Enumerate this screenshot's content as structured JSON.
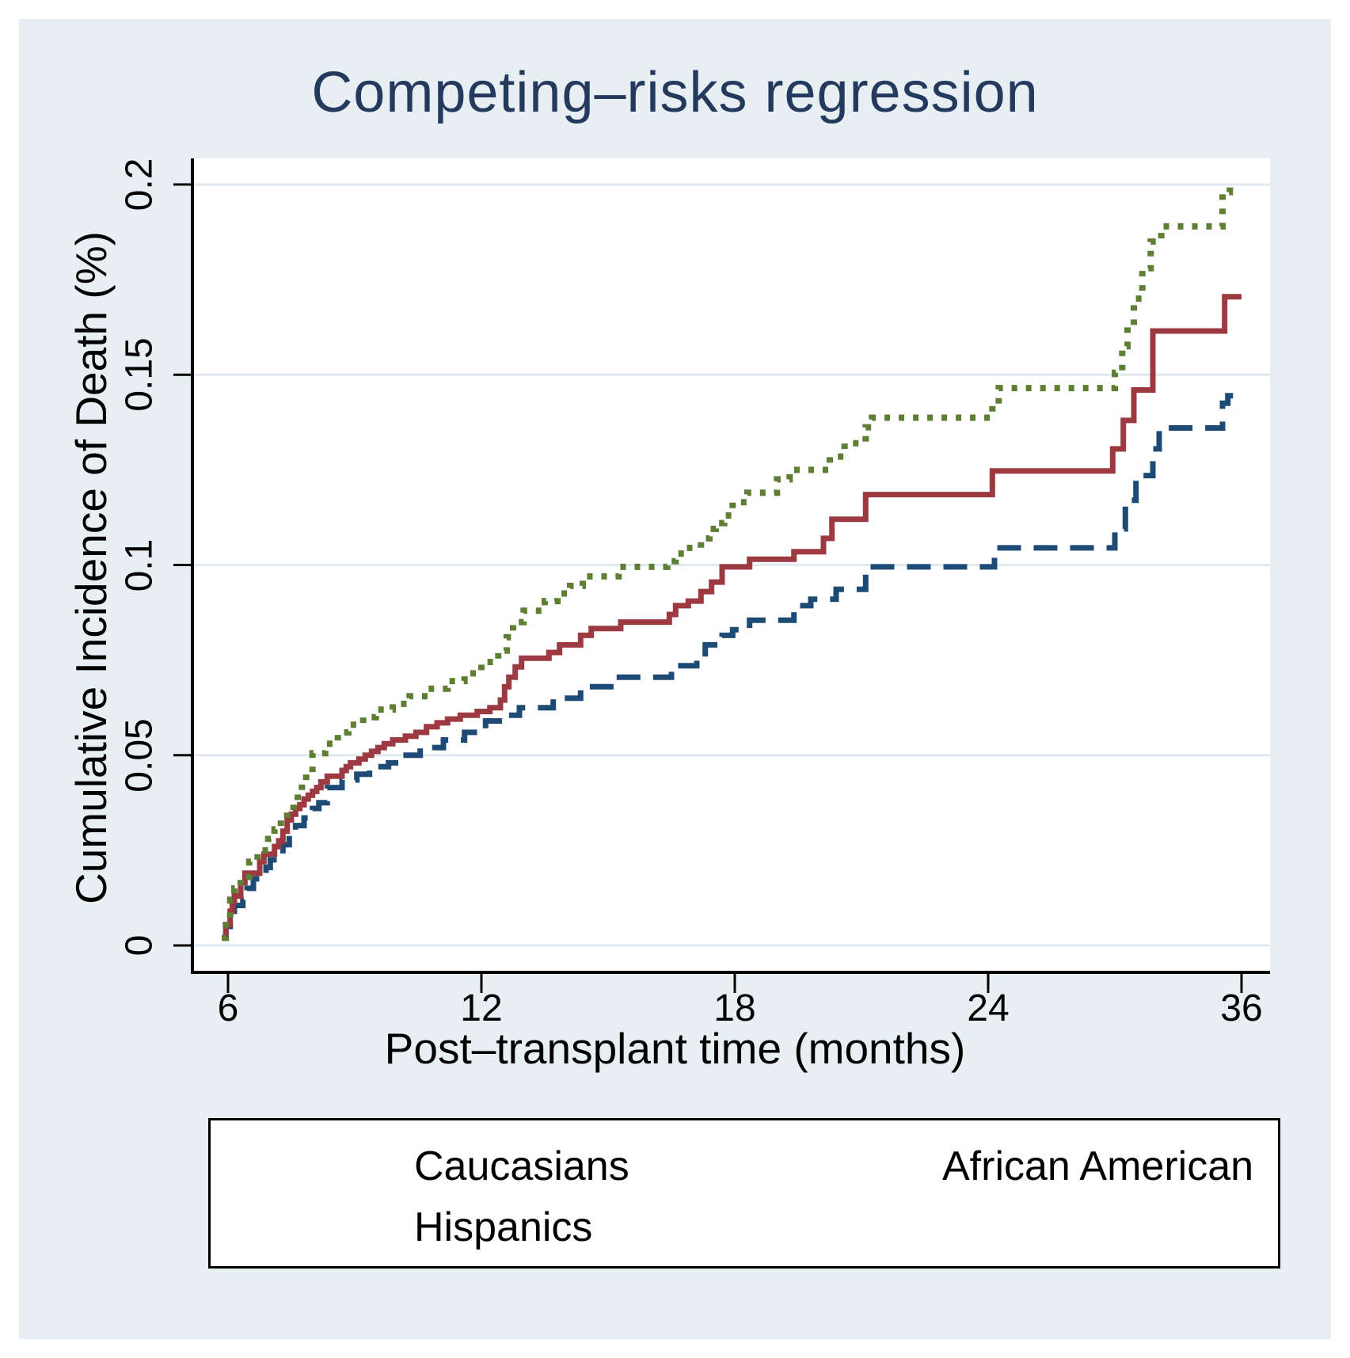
{
  "figure": {
    "title": "Competing–risks regression",
    "title_color": "#233a5e",
    "background_color": "#e8eff2",
    "plot_background_color": "#ffffff",
    "grid_color": "#dfeaf0",
    "axis_color": "#000000"
  },
  "chart_data": {
    "type": "line",
    "subtype": "step-cumulative-incidence",
    "title": "Competing–risks regression",
    "xlabel": "Post–transplant time (months)",
    "ylabel": "Cumulative Incidence of Death (%)",
    "grid": "horizontal",
    "legend_position": "bottom",
    "ylim": [
      0,
      0.2
    ],
    "y_ticks": [
      {
        "label": "0",
        "value": 0
      },
      {
        "label": "0.05",
        "value": 0.05
      },
      {
        "label": "0.1",
        "value": 0.1
      },
      {
        "label": "0.15",
        "value": 0.15
      },
      {
        "label": "0.2",
        "value": 0.2
      }
    ],
    "x_ticks": [
      {
        "label": "6",
        "month": 6
      },
      {
        "label": "12",
        "month": 12
      },
      {
        "label": "18",
        "month": 18
      },
      {
        "label": "24",
        "month": 24
      },
      {
        "label": "36",
        "month": 36
      }
    ],
    "series": [
      {
        "name": "Caucasians",
        "color": "#1e4b75",
        "dash": "30 16",
        "stroke_width": 7,
        "end_month": 36.0,
        "points": [
          [
            5.85,
            0.002
          ],
          [
            5.95,
            0.005
          ],
          [
            6.05,
            0.008
          ],
          [
            6.15,
            0.0105
          ],
          [
            6.35,
            0.012
          ],
          [
            6.45,
            0.015
          ],
          [
            6.6,
            0.0175
          ],
          [
            6.9,
            0.0205
          ],
          [
            7.0,
            0.0225
          ],
          [
            7.2,
            0.024
          ],
          [
            7.3,
            0.0265
          ],
          [
            7.45,
            0.029
          ],
          [
            7.6,
            0.0315
          ],
          [
            7.8,
            0.0335
          ],
          [
            8.0,
            0.036
          ],
          [
            8.15,
            0.0375
          ],
          [
            8.35,
            0.0415
          ],
          [
            8.7,
            0.0435
          ],
          [
            9.05,
            0.045
          ],
          [
            9.35,
            0.047
          ],
          [
            9.8,
            0.048
          ],
          [
            10.1,
            0.05
          ],
          [
            10.55,
            0.052
          ],
          [
            11.1,
            0.054
          ],
          [
            11.6,
            0.056
          ],
          [
            12.1,
            0.059
          ],
          [
            12.5,
            0.0605
          ],
          [
            12.9,
            0.0625
          ],
          [
            13.7,
            0.065
          ],
          [
            14.35,
            0.068
          ],
          [
            15.15,
            0.0705
          ],
          [
            16.5,
            0.0735
          ],
          [
            17.1,
            0.0755
          ],
          [
            17.3,
            0.079
          ],
          [
            17.7,
            0.0815
          ],
          [
            17.95,
            0.083
          ],
          [
            18.35,
            0.0855
          ],
          [
            19.4,
            0.0893
          ],
          [
            19.8,
            0.091
          ],
          [
            20.4,
            0.0936
          ],
          [
            21.1,
            0.0995
          ],
          [
            24.3,
            0.1045
          ],
          [
            30.0,
            0.1095
          ],
          [
            30.5,
            0.117
          ],
          [
            31.0,
            0.1235
          ],
          [
            31.8,
            0.1305
          ],
          [
            32.1,
            0.136
          ],
          [
            35.1,
            0.1425
          ],
          [
            35.35,
            0.1445
          ]
        ]
      },
      {
        "name": "African American",
        "color": "#9d3a41",
        "dash": "",
        "stroke_width": 7,
        "end_month": 36.0,
        "points": [
          [
            5.85,
            0.002
          ],
          [
            5.95,
            0.0055
          ],
          [
            6.05,
            0.009
          ],
          [
            6.1,
            0.0115
          ],
          [
            6.15,
            0.013
          ],
          [
            6.3,
            0.0165
          ],
          [
            6.4,
            0.019
          ],
          [
            6.75,
            0.022
          ],
          [
            6.85,
            0.024
          ],
          [
            7.1,
            0.026
          ],
          [
            7.2,
            0.0275
          ],
          [
            7.3,
            0.03
          ],
          [
            7.4,
            0.033
          ],
          [
            7.5,
            0.0345
          ],
          [
            7.6,
            0.036
          ],
          [
            7.7,
            0.037
          ],
          [
            7.8,
            0.0385
          ],
          [
            7.9,
            0.0395
          ],
          [
            8.0,
            0.0405
          ],
          [
            8.1,
            0.0415
          ],
          [
            8.2,
            0.043
          ],
          [
            8.35,
            0.0445
          ],
          [
            8.7,
            0.046
          ],
          [
            8.8,
            0.047
          ],
          [
            8.9,
            0.048
          ],
          [
            9.1,
            0.049
          ],
          [
            9.25,
            0.05
          ],
          [
            9.4,
            0.051
          ],
          [
            9.55,
            0.052
          ],
          [
            9.7,
            0.053
          ],
          [
            9.9,
            0.054
          ],
          [
            10.2,
            0.055
          ],
          [
            10.45,
            0.056
          ],
          [
            10.7,
            0.0575
          ],
          [
            10.95,
            0.0585
          ],
          [
            11.2,
            0.0595
          ],
          [
            11.5,
            0.0605
          ],
          [
            11.9,
            0.0615
          ],
          [
            12.2,
            0.0625
          ],
          [
            12.45,
            0.0645
          ],
          [
            12.55,
            0.068
          ],
          [
            12.65,
            0.0705
          ],
          [
            12.8,
            0.0732
          ],
          [
            12.95,
            0.0755
          ],
          [
            13.6,
            0.077
          ],
          [
            13.85,
            0.079
          ],
          [
            14.35,
            0.0815
          ],
          [
            14.6,
            0.0833
          ],
          [
            15.3,
            0.085
          ],
          [
            16.45,
            0.087
          ],
          [
            16.6,
            0.0893
          ],
          [
            16.9,
            0.0905
          ],
          [
            17.2,
            0.093
          ],
          [
            17.45,
            0.0955
          ],
          [
            17.7,
            0.0995
          ],
          [
            18.35,
            0.1015
          ],
          [
            19.4,
            0.1035
          ],
          [
            20.1,
            0.107
          ],
          [
            20.3,
            0.112
          ],
          [
            21.1,
            0.1185
          ],
          [
            24.2,
            0.1247
          ],
          [
            29.9,
            0.1305
          ],
          [
            30.4,
            0.138
          ],
          [
            30.9,
            0.146
          ],
          [
            31.8,
            0.1615
          ],
          [
            35.2,
            0.1705
          ]
        ]
      },
      {
        "name": "Hispanics",
        "color": "#5e7f33",
        "dash": "7 11",
        "stroke_width": 8,
        "end_month": 35.7,
        "points": [
          [
            5.85,
            0.002
          ],
          [
            5.95,
            0.007
          ],
          [
            6.05,
            0.012
          ],
          [
            6.15,
            0.015
          ],
          [
            6.3,
            0.018
          ],
          [
            6.5,
            0.022
          ],
          [
            6.7,
            0.025
          ],
          [
            6.95,
            0.028
          ],
          [
            7.1,
            0.0305
          ],
          [
            7.25,
            0.033
          ],
          [
            7.4,
            0.035
          ],
          [
            7.55,
            0.0375
          ],
          [
            7.65,
            0.04
          ],
          [
            7.75,
            0.0425
          ],
          [
            7.85,
            0.0455
          ],
          [
            8.0,
            0.0505
          ],
          [
            8.3,
            0.053
          ],
          [
            8.6,
            0.056
          ],
          [
            8.85,
            0.058
          ],
          [
            9.2,
            0.06
          ],
          [
            9.5,
            0.062
          ],
          [
            9.9,
            0.0635
          ],
          [
            10.3,
            0.0655
          ],
          [
            10.75,
            0.0675
          ],
          [
            11.2,
            0.0695
          ],
          [
            11.6,
            0.0715
          ],
          [
            12.0,
            0.0745
          ],
          [
            12.4,
            0.0775
          ],
          [
            12.6,
            0.081
          ],
          [
            12.75,
            0.085
          ],
          [
            13.0,
            0.088
          ],
          [
            13.5,
            0.0905
          ],
          [
            13.8,
            0.0925
          ],
          [
            14.1,
            0.0945
          ],
          [
            14.4,
            0.097
          ],
          [
            15.25,
            0.0995
          ],
          [
            16.4,
            0.101
          ],
          [
            16.6,
            0.103
          ],
          [
            16.8,
            0.1045
          ],
          [
            17.2,
            0.107
          ],
          [
            17.4,
            0.1095
          ],
          [
            17.55,
            0.111
          ],
          [
            17.75,
            0.113
          ],
          [
            17.95,
            0.1165
          ],
          [
            18.3,
            0.119
          ],
          [
            19.0,
            0.1225
          ],
          [
            19.3,
            0.125
          ],
          [
            20.25,
            0.1285
          ],
          [
            20.6,
            0.132
          ],
          [
            21.1,
            0.1362
          ],
          [
            21.25,
            0.1387
          ],
          [
            24.2,
            0.142
          ],
          [
            24.5,
            0.1465
          ],
          [
            30.0,
            0.1505
          ],
          [
            30.35,
            0.1575
          ],
          [
            30.6,
            0.163
          ],
          [
            30.9,
            0.17
          ],
          [
            31.3,
            0.178
          ],
          [
            31.7,
            0.185
          ],
          [
            32.2,
            0.189
          ],
          [
            35.1,
            0.198
          ],
          [
            35.45,
            0.1998
          ]
        ]
      }
    ]
  },
  "legend": {
    "entries": [
      {
        "label": "Caucasians"
      },
      {
        "label": "African American"
      },
      {
        "label": "Hispanics"
      }
    ]
  }
}
